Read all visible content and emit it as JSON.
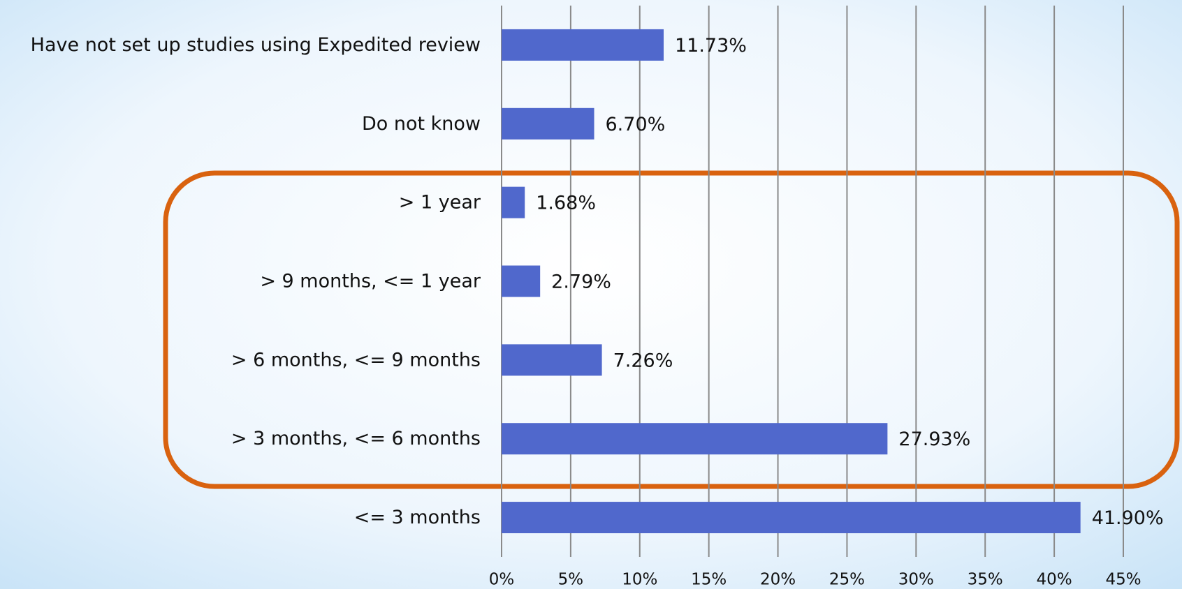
{
  "chart_data": {
    "type": "bar",
    "orientation": "horizontal",
    "categories": [
      "Have not set up studies using Expedited review",
      "Do not know",
      "> 1 year",
      "> 9 months, <= 1 year",
      "> 6 months, <= 9 months",
      "> 3 months, <= 6 months",
      "<= 3 months"
    ],
    "values": [
      11.73,
      6.7,
      1.68,
      2.79,
      7.26,
      27.93,
      41.9
    ],
    "value_labels": [
      "11.73%",
      "6.70%",
      "1.68%",
      "2.79%",
      "7.26%",
      "27.93%",
      "41.90%"
    ],
    "color": "#5068cc",
    "xlim": [
      0,
      45
    ],
    "xticks": [
      {
        "value": 0,
        "label": "0%"
      },
      {
        "value": 5,
        "label": "5%"
      },
      {
        "value": 10,
        "label": "10%"
      },
      {
        "value": 15,
        "label": "15%"
      },
      {
        "value": 20,
        "label": "20%"
      },
      {
        "value": 25,
        "label": "25%"
      },
      {
        "value": 30,
        "label": "30%"
      },
      {
        "value": 35,
        "label": "35%"
      },
      {
        "value": 40,
        "label": "40%"
      },
      {
        "value": 45,
        "label": "45%"
      }
    ],
    "grid": true
  }
}
